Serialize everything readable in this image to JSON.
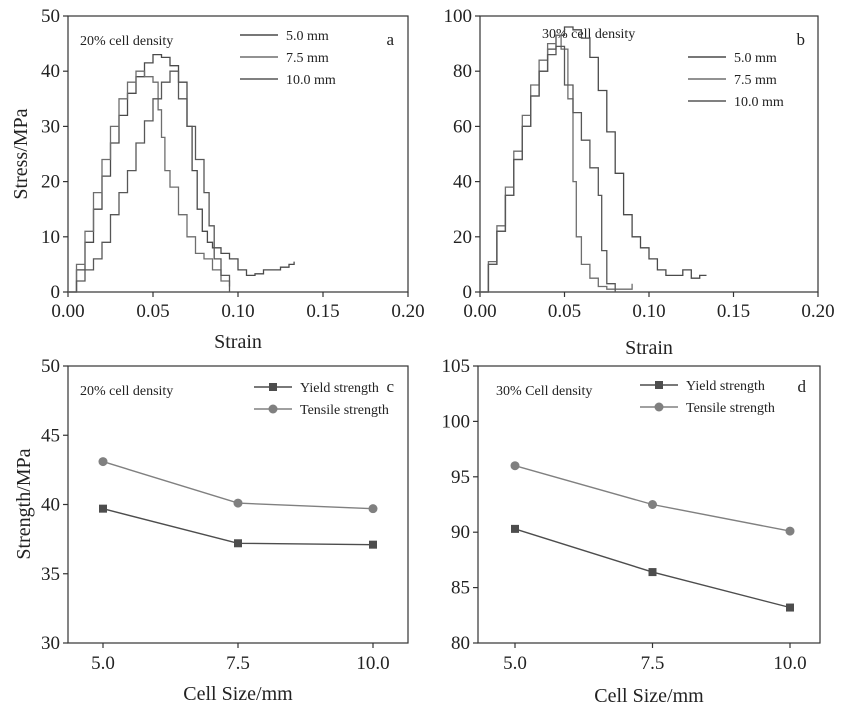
{
  "chart_data": [
    {
      "id": "a",
      "type": "line",
      "panel_label": "a",
      "annotation": "20% cell density",
      "xlabel": "Strain",
      "ylabel": "Stress/MPa",
      "xlim": [
        0,
        0.2
      ],
      "ylim": [
        0,
        50
      ],
      "xticks": [
        "0.00",
        "0.05",
        "0.10",
        "0.15",
        "0.20"
      ],
      "yticks": [
        "0",
        "10",
        "20",
        "30",
        "40",
        "50"
      ],
      "legend_position": "top-right",
      "series": [
        {
          "name": "5.0 mm",
          "color": "#4a4a4a",
          "x": [
            0,
            0.005,
            0.01,
            0.015,
            0.02,
            0.025,
            0.03,
            0.035,
            0.04,
            0.045,
            0.05,
            0.055,
            0.06,
            0.065,
            0.07,
            0.073,
            0.076,
            0.079,
            0.082,
            0.085,
            0.09,
            0.095,
            0.1,
            0.105,
            0.11,
            0.115,
            0.12,
            0.125,
            0.13,
            0.133
          ],
          "y": [
            0,
            4,
            9,
            15,
            21,
            27,
            32,
            36,
            39,
            41.5,
            43,
            42.5,
            41,
            38,
            30,
            22,
            15,
            11,
            9,
            8,
            7,
            6,
            4,
            3,
            3.3,
            4,
            4,
            4.5,
            5,
            5.5
          ]
        },
        {
          "name": "7.5 mm",
          "color": "#6e6e6e",
          "x": [
            0,
            0.005,
            0.01,
            0.015,
            0.02,
            0.025,
            0.03,
            0.035,
            0.04,
            0.045,
            0.05,
            0.053,
            0.055,
            0.057,
            0.06,
            0.065,
            0.07,
            0.075,
            0.08,
            0.085,
            0.09,
            0.095
          ],
          "y": [
            0,
            5,
            11,
            18,
            24,
            30,
            35,
            38,
            40,
            39,
            38,
            33,
            28,
            22,
            19,
            14,
            10,
            7,
            6,
            4,
            2,
            1
          ]
        },
        {
          "name": "10.0 mm",
          "color": "#575757",
          "x": [
            0,
            0.005,
            0.01,
            0.015,
            0.02,
            0.025,
            0.03,
            0.035,
            0.04,
            0.045,
            0.05,
            0.055,
            0.06,
            0.065,
            0.07,
            0.075,
            0.08,
            0.083,
            0.086,
            0.09,
            0.095
          ],
          "y": [
            0,
            2,
            4,
            6,
            9,
            14,
            18,
            22,
            27,
            31,
            35,
            38,
            40,
            35,
            30,
            24,
            18,
            12,
            6,
            3,
            0
          ]
        }
      ]
    },
    {
      "id": "b",
      "type": "line",
      "panel_label": "b",
      "annotation": "30% cell density",
      "xlabel": "Strain",
      "ylabel": "",
      "xlim": [
        0,
        0.2
      ],
      "ylim": [
        0,
        100
      ],
      "xticks": [
        "0.00",
        "0.05",
        "0.10",
        "0.15",
        "0.20"
      ],
      "yticks": [
        "0",
        "20",
        "40",
        "60",
        "80",
        "100"
      ],
      "legend_position": "top-right",
      "series": [
        {
          "name": "5.0 mm",
          "color": "#4a4a4a",
          "x": [
            0,
            0.005,
            0.01,
            0.015,
            0.02,
            0.025,
            0.03,
            0.035,
            0.04,
            0.045,
            0.05,
            0.055,
            0.06,
            0.065,
            0.07,
            0.075,
            0.08,
            0.085,
            0.09,
            0.095,
            0.1,
            0.105,
            0.11,
            0.115,
            0.12,
            0.125,
            0.13,
            0.134
          ],
          "y": [
            0,
            10,
            22,
            35,
            48,
            60,
            71,
            80,
            88,
            93,
            96,
            95,
            92,
            85,
            73,
            58,
            43,
            28,
            20,
            16,
            12,
            8,
            6,
            6,
            8,
            5,
            6,
            6
          ]
        },
        {
          "name": "7.5 mm",
          "color": "#6e6e6e",
          "x": [
            0,
            0.005,
            0.01,
            0.015,
            0.02,
            0.025,
            0.03,
            0.035,
            0.04,
            0.045,
            0.048,
            0.052,
            0.055,
            0.057,
            0.06,
            0.065,
            0.07,
            0.075,
            0.08,
            0.09
          ],
          "y": [
            0,
            11,
            24,
            38,
            51,
            64,
            75,
            84,
            90,
            93,
            88,
            70,
            40,
            20,
            10,
            5,
            2,
            1,
            1,
            3
          ]
        },
        {
          "name": "10.0 mm",
          "color": "#575757",
          "x": [
            0,
            0.005,
            0.01,
            0.015,
            0.02,
            0.025,
            0.03,
            0.035,
            0.04,
            0.045,
            0.05,
            0.055,
            0.06,
            0.065,
            0.07,
            0.072,
            0.075,
            0.08
          ],
          "y": [
            0,
            10,
            22,
            35,
            48,
            60,
            71,
            80,
            86,
            89,
            75,
            65,
            55,
            45,
            35,
            15,
            3,
            0
          ]
        }
      ]
    },
    {
      "id": "c",
      "type": "line",
      "panel_label": "c",
      "annotation": "20% cell density",
      "xlabel": "Cell Size/mm",
      "ylabel": "Strength/MPa",
      "categories": [
        "5.0",
        "7.5",
        "10.0"
      ],
      "ylim": [
        30,
        50
      ],
      "yticks": [
        "30",
        "35",
        "40",
        "45",
        "50"
      ],
      "legend_position": "top-right",
      "series": [
        {
          "name": "Yield strength",
          "marker": "square",
          "color": "#4d4d4d",
          "values": [
            39.7,
            37.2,
            37.1
          ]
        },
        {
          "name": "Tensile strength",
          "marker": "circle",
          "color": "#808080",
          "values": [
            43.1,
            40.1,
            39.7
          ]
        }
      ]
    },
    {
      "id": "d",
      "type": "line",
      "panel_label": "d",
      "annotation": "30% Cell density",
      "xlabel": "Cell Size/mm",
      "ylabel": "",
      "categories": [
        "5.0",
        "7.5",
        "10.0"
      ],
      "ylim": [
        80,
        105
      ],
      "yticks": [
        "80",
        "85",
        "90",
        "95",
        "100",
        "105"
      ],
      "legend_position": "top-right",
      "series": [
        {
          "name": "Yield strength",
          "marker": "square",
          "color": "#4d4d4d",
          "values": [
            90.3,
            86.4,
            83.2
          ]
        },
        {
          "name": "Tensile strength",
          "marker": "circle",
          "color": "#808080",
          "values": [
            96.0,
            92.5,
            90.1
          ]
        }
      ]
    }
  ]
}
